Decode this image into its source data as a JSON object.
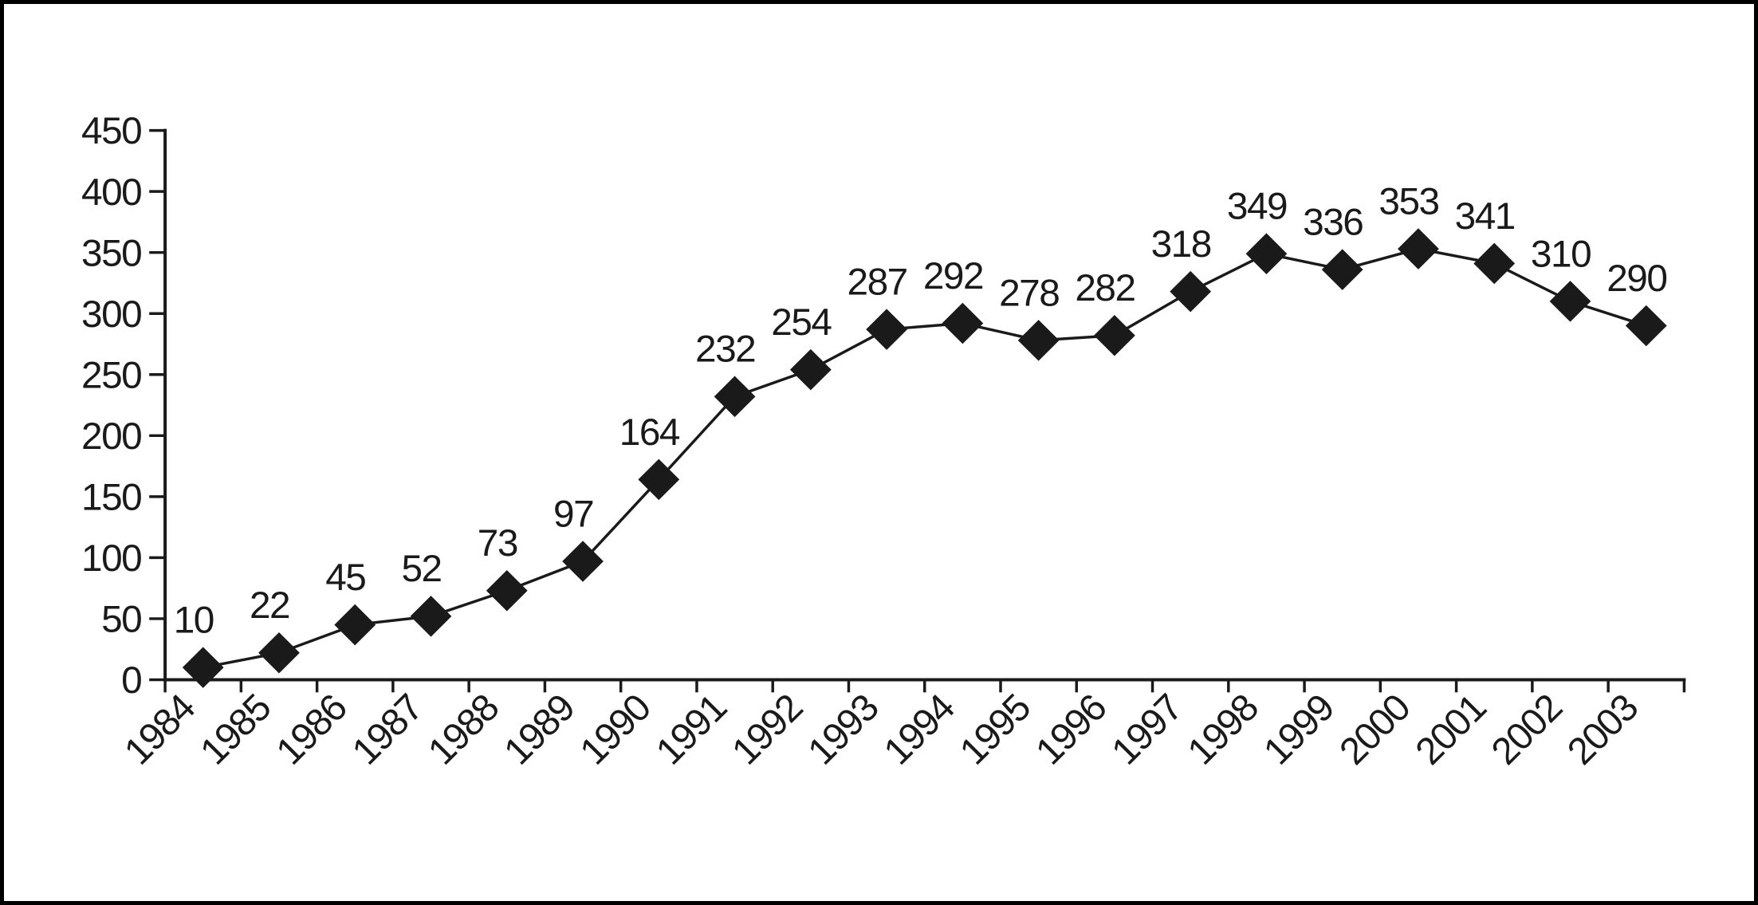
{
  "frame": {
    "background": "#ffffff",
    "border_color": "#000000"
  },
  "chart_data": {
    "type": "line",
    "x": [
      "1984",
      "1985",
      "1986",
      "1987",
      "1988",
      "1989",
      "1990",
      "1991",
      "1992",
      "1993",
      "1994",
      "1995",
      "1996",
      "1997",
      "1998",
      "1999",
      "2000",
      "2001",
      "2002",
      "2003"
    ],
    "values": [
      10,
      22,
      45,
      52,
      73,
      97,
      164,
      232,
      254,
      287,
      292,
      278,
      282,
      318,
      349,
      336,
      353,
      341,
      310,
      290
    ],
    "data_labels": [
      10,
      22,
      45,
      52,
      73,
      97,
      164,
      232,
      254,
      287,
      292,
      278,
      282,
      318,
      349,
      336,
      353,
      341,
      310,
      290
    ],
    "ylim": [
      0,
      450
    ],
    "ytick_step": 50,
    "yticks": [
      0,
      50,
      100,
      150,
      200,
      250,
      300,
      350,
      400,
      450
    ],
    "x_tick_rotation": -45,
    "grid": false,
    "legend": "none",
    "marker": "diamond",
    "line_color": "#1a1a1a",
    "marker_color": "#1a1a1a",
    "axis_color": "#1a1a1a",
    "label_color": "#1a1a1a"
  }
}
